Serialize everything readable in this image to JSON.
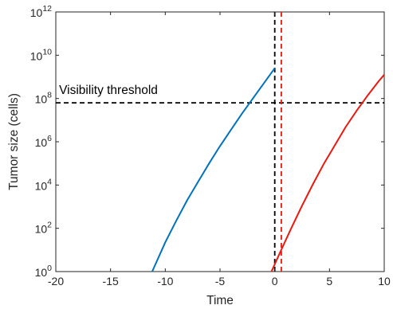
{
  "chart_data": {
    "type": "line",
    "title": "",
    "xlabel": "Time",
    "ylabel": "Tumor size (cells)",
    "xlim": [
      -20,
      10
    ],
    "ylim_log10": [
      0,
      12
    ],
    "y_scale": "log",
    "grid": false,
    "x_ticks": [
      {
        "value": -20,
        "label": "-20"
      },
      {
        "value": -15,
        "label": "-15"
      },
      {
        "value": -10,
        "label": "-10"
      },
      {
        "value": -5,
        "label": "-5"
      },
      {
        "value": 0,
        "label": "0"
      },
      {
        "value": 5,
        "label": "5"
      },
      {
        "value": 10,
        "label": "10"
      }
    ],
    "y_ticks": [
      {
        "exponent": 0,
        "base": "10",
        "exp_label": "0"
      },
      {
        "exponent": 2,
        "base": "10",
        "exp_label": "2"
      },
      {
        "exponent": 4,
        "base": "10",
        "exp_label": "4"
      },
      {
        "exponent": 6,
        "base": "10",
        "exp_label": "6"
      },
      {
        "exponent": 8,
        "base": "10",
        "exp_label": "8"
      },
      {
        "exponent": 10,
        "base": "10",
        "exp_label": "10"
      },
      {
        "exponent": 12,
        "base": "10",
        "exp_label": "12"
      }
    ],
    "series": [
      {
        "color": "#0072BD",
        "points": [
          [
            -11.2,
            0.0
          ],
          [
            -10,
            1.35
          ],
          [
            -9,
            2.35
          ],
          [
            -8,
            3.3
          ],
          [
            -7,
            4.15
          ],
          [
            -6,
            5.0
          ],
          [
            -5,
            5.8
          ],
          [
            -4,
            6.55
          ],
          [
            -3,
            7.3
          ],
          [
            -2,
            8.0
          ],
          [
            -1,
            8.7
          ],
          [
            0,
            9.4
          ]
        ]
      },
      {
        "color": "#E8190F",
        "points": [
          [
            -0.3,
            0.0
          ],
          [
            0.5,
            0.9
          ],
          [
            1.5,
            2.0
          ],
          [
            2.5,
            3.05
          ],
          [
            3.5,
            4.05
          ],
          [
            4.5,
            5.0
          ],
          [
            5.5,
            5.85
          ],
          [
            6.5,
            6.7
          ],
          [
            7.5,
            7.45
          ],
          [
            8.5,
            8.15
          ],
          [
            9.5,
            8.8
          ],
          [
            10,
            9.1
          ]
        ]
      }
    ],
    "reference_lines": [
      {
        "orientation": "horizontal",
        "log10_value": 7.8,
        "color": "#000000",
        "style": "dashed"
      },
      {
        "orientation": "vertical",
        "x": 0,
        "color": "#000000",
        "style": "dashed"
      },
      {
        "orientation": "vertical",
        "x": 0.6,
        "color": "#E8190F",
        "style": "dashed"
      }
    ],
    "annotations": [
      {
        "text": "Visibility threshold",
        "x": -19.7,
        "log10_y": 8.2
      }
    ]
  }
}
